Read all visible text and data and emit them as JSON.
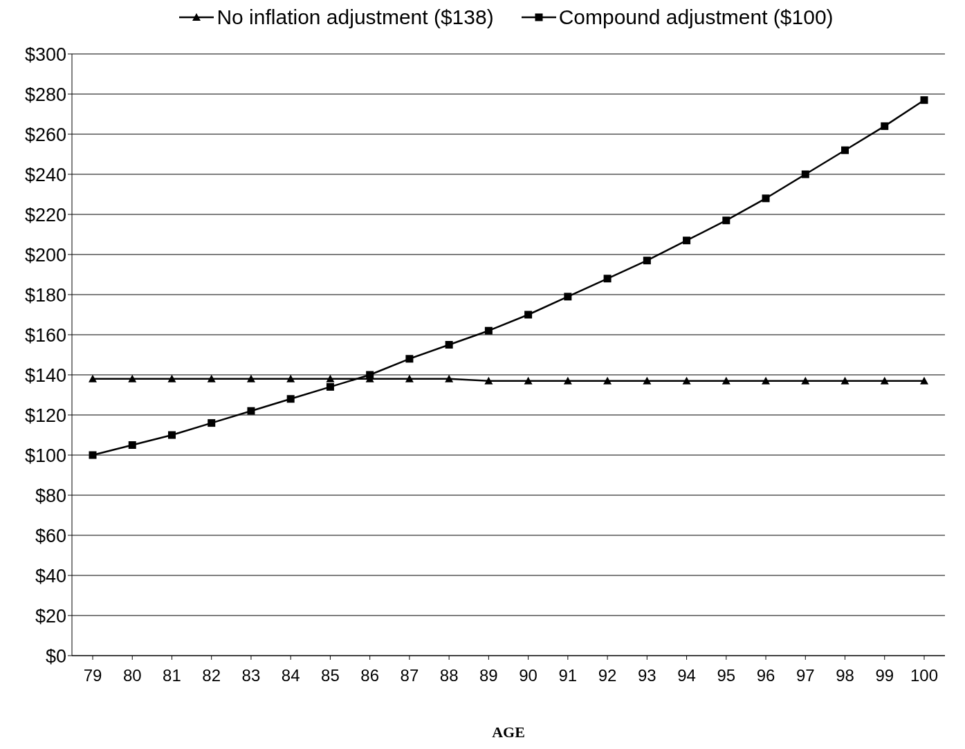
{
  "chart_data": {
    "type": "line",
    "xlabel": "AGE",
    "categories": [
      "79",
      "80",
      "81",
      "82",
      "83",
      "84",
      "85",
      "86",
      "87",
      "88",
      "89",
      "90",
      "91",
      "92",
      "93",
      "94",
      "95",
      "96",
      "97",
      "98",
      "99",
      "100"
    ],
    "series": [
      {
        "name": "No inflation adjustment ($138)",
        "color": "#000000",
        "marker": "triangle",
        "values": [
          138,
          138,
          138,
          138,
          138,
          138,
          138,
          138,
          138,
          138,
          137,
          137,
          137,
          137,
          137,
          137,
          137,
          137,
          137,
          137,
          137,
          137
        ]
      },
      {
        "name": "Compound adjustment ($100)",
        "color": "#000000",
        "marker": "square",
        "values": [
          100,
          105,
          110,
          116,
          122,
          128,
          134,
          140,
          148,
          155,
          162,
          170,
          179,
          188,
          197,
          207,
          217,
          228,
          240,
          252,
          264,
          277
        ]
      }
    ],
    "ylim": [
      0,
      300
    ],
    "yticks": [
      {
        "value": 0,
        "label": "$0"
      },
      {
        "value": 20,
        "label": "$20"
      },
      {
        "value": 40,
        "label": "$40"
      },
      {
        "value": 60,
        "label": "$60"
      },
      {
        "value": 80,
        "label": "$80"
      },
      {
        "value": 100,
        "label": "$100"
      },
      {
        "value": 120,
        "label": "$120"
      },
      {
        "value": 140,
        "label": "$140"
      },
      {
        "value": 160,
        "label": "$160"
      },
      {
        "value": 180,
        "label": "$180"
      },
      {
        "value": 200,
        "label": "$200"
      },
      {
        "value": 220,
        "label": "$220"
      },
      {
        "value": 240,
        "label": "$240"
      },
      {
        "value": 260,
        "label": "$260"
      },
      {
        "value": 280,
        "label": "$280"
      },
      {
        "value": 300,
        "label": "$300"
      }
    ],
    "grid": "y",
    "legend": "top",
    "line_style": "solid"
  }
}
